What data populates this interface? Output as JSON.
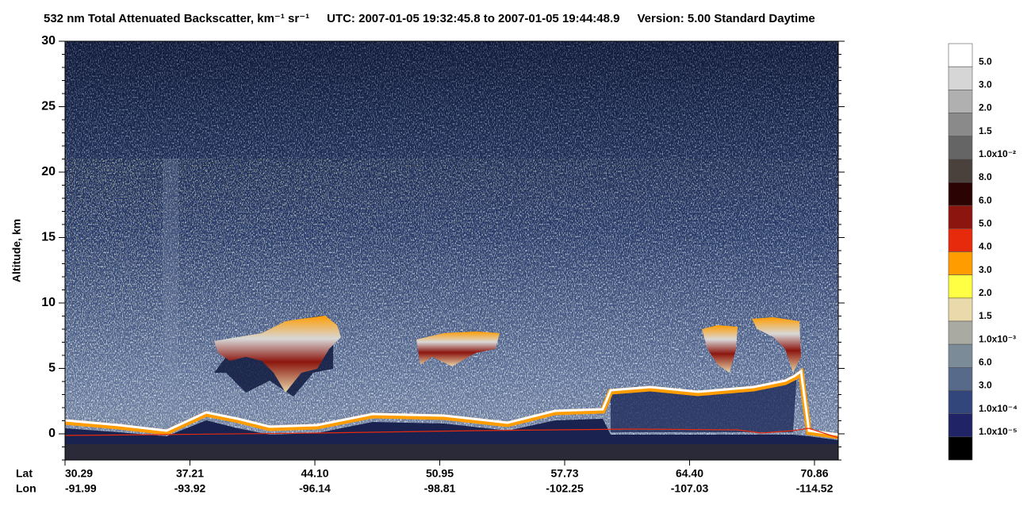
{
  "chart_data": {
    "type": "curtain",
    "title": "532 nm Total Attenuated Backscatter, km⁻¹ sr⁻¹",
    "time_range": "UTC:  2007-01-05 19:32:45.8  to  2007-01-05 19:44:48.9",
    "version": "Version: 5.00  Standard  Daytime",
    "y_label": "Altitude, km",
    "ylim": [
      -2,
      30
    ],
    "yticks": [
      0,
      5,
      10,
      15,
      20,
      25,
      30
    ],
    "x_row_labels": [
      "Lat",
      "Lon"
    ],
    "lat": [
      "30.29",
      "37.21",
      "44.10",
      "50.95",
      "57.73",
      "64.40",
      "70.86"
    ],
    "lon": [
      "-91.99",
      "-93.92",
      "-96.14",
      "-98.81",
      "-102.25",
      "-107.03",
      "-114.52"
    ],
    "colorbar": {
      "colors": [
        "#ffffff",
        "#d6d6d6",
        "#b0b0b0",
        "#8a8a8a",
        "#656565",
        "#4a403c",
        "#2c0303",
        "#8c160f",
        "#e82a0c",
        "#ff9c00",
        "#ffff44",
        "#e9d9ab",
        "#a9aba2",
        "#7c8b98",
        "#586a8a",
        "#33467c",
        "#202466",
        "#000000"
      ],
      "labels": [
        "5.0",
        "3.0",
        "2.0",
        "1.5",
        "1.0x10⁻²",
        "8.0",
        "6.0",
        "5.0",
        "4.0",
        "3.0",
        "2.0",
        "1.5",
        "1.0x10⁻³",
        "6.0",
        "3.0",
        "1.0x10⁻⁴",
        "1.0x10⁻⁵"
      ]
    }
  }
}
